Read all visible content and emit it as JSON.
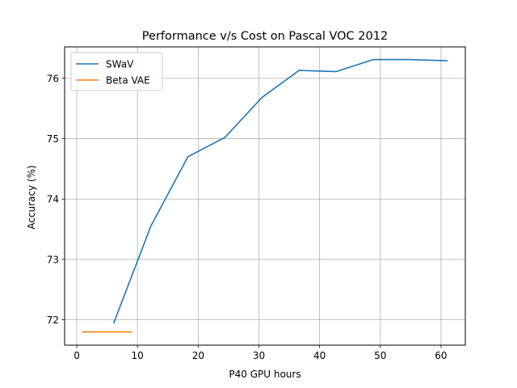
{
  "chart_data": {
    "type": "line",
    "title": "Performance v/s Cost on Pascal VOC 2012",
    "xlabel": "P40 GPU hours",
    "ylabel": "Accuracy (%)",
    "xlim": [
      -2,
      64
    ],
    "ylim": [
      71.58,
      76.52
    ],
    "xticks": [
      0,
      10,
      20,
      30,
      40,
      50,
      60
    ],
    "yticks": [
      72,
      73,
      74,
      75,
      76
    ],
    "grid": true,
    "legend_position": "upper-left",
    "series": [
      {
        "name": "SWaV",
        "color": "#1f77b4",
        "x": [
          6.1,
          12.2,
          18.3,
          24.4,
          30.5,
          36.6,
          42.7,
          48.8,
          54.9,
          61.0
        ],
        "y": [
          71.95,
          73.55,
          74.7,
          75.02,
          75.68,
          76.13,
          76.11,
          76.31,
          76.31,
          76.29
        ]
      },
      {
        "name": "Beta VAE",
        "color": "#ff7f0e",
        "x": [
          1,
          9
        ],
        "y": [
          71.8,
          71.8
        ]
      }
    ]
  }
}
